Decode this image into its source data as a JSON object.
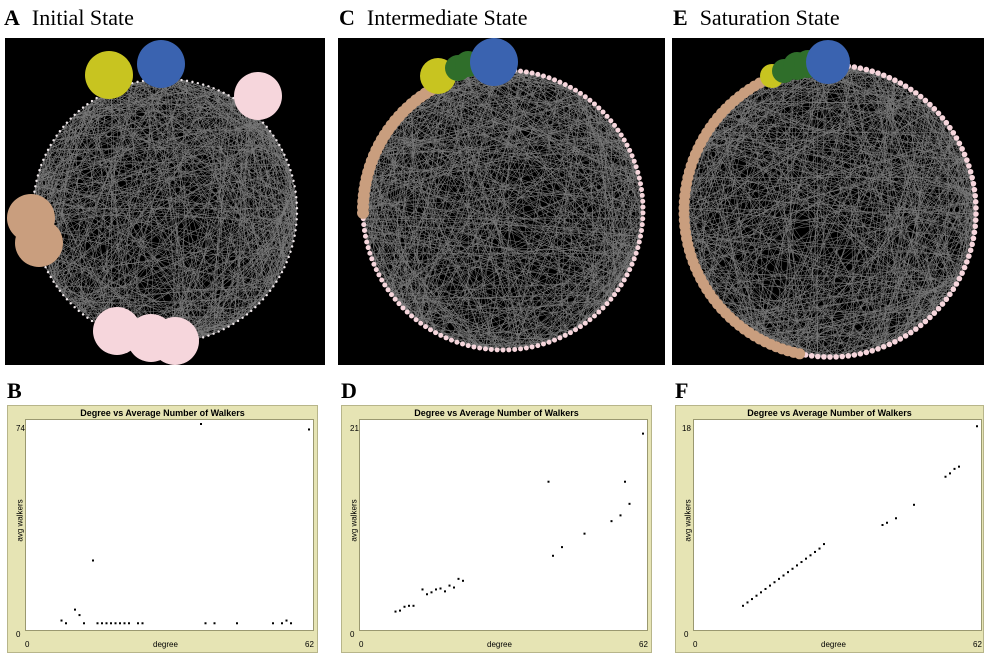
{
  "panels": [
    {
      "letter": "A",
      "title": "Initial State"
    },
    {
      "letter": "C",
      "title": "Intermediate State"
    },
    {
      "letter": "E",
      "title": "Saturation State"
    }
  ],
  "plot_letters": [
    "B",
    "D",
    "F"
  ],
  "colors": {
    "blue": "#3a63b0",
    "yellow": "#c8c420",
    "green": "#2f6e2a",
    "tan": "#c99e7e",
    "pink": "#f6d6dc",
    "edge": "#8f8f8f",
    "node": "#f0e8ea"
  },
  "chart_data": [
    {
      "type": "scatter",
      "title": "Degree vs Average Number of Walkers",
      "xlabel": "degree",
      "ylabel": "avg walkers",
      "xlim": [
        0,
        62
      ],
      "ylim": [
        0,
        74
      ],
      "x_ticks": [
        "0",
        "62"
      ],
      "y_ticks": [
        "0",
        "74"
      ],
      "points": [
        [
          7,
          2
        ],
        [
          8,
          1
        ],
        [
          10,
          6
        ],
        [
          11,
          4
        ],
        [
          12,
          1
        ],
        [
          14,
          24
        ],
        [
          15,
          1
        ],
        [
          16,
          1
        ],
        [
          17,
          1
        ],
        [
          18,
          1
        ],
        [
          19,
          1
        ],
        [
          20,
          1
        ],
        [
          21,
          1
        ],
        [
          22,
          1
        ],
        [
          24,
          1
        ],
        [
          25,
          1
        ],
        [
          38,
          74
        ],
        [
          39,
          1
        ],
        [
          41,
          1
        ],
        [
          46,
          1
        ],
        [
          54,
          1
        ],
        [
          56,
          1
        ],
        [
          57,
          2
        ],
        [
          58,
          1
        ],
        [
          62,
          72
        ]
      ]
    },
    {
      "type": "scatter",
      "title": "Degree vs Average Number of Walkers",
      "xlabel": "degree",
      "ylabel": "avg walkers",
      "xlim": [
        0,
        62
      ],
      "ylim": [
        0,
        21
      ],
      "x_ticks": [
        "0",
        "62"
      ],
      "y_ticks": [
        "0",
        "21"
      ],
      "points": [
        [
          7,
          1.5
        ],
        [
          8,
          1.6
        ],
        [
          9,
          2
        ],
        [
          10,
          2.1
        ],
        [
          11,
          2.1
        ],
        [
          13,
          3.8
        ],
        [
          14,
          3.3
        ],
        [
          15,
          3.5
        ],
        [
          16,
          3.8
        ],
        [
          17,
          3.9
        ],
        [
          18,
          3.6
        ],
        [
          19,
          4.2
        ],
        [
          20,
          4
        ],
        [
          21,
          4.9
        ],
        [
          22,
          4.7
        ],
        [
          41,
          15
        ],
        [
          42,
          7.3
        ],
        [
          44,
          8.2
        ],
        [
          49,
          9.6
        ],
        [
          55,
          10.9
        ],
        [
          57,
          11.5
        ],
        [
          58,
          15
        ],
        [
          59,
          12.7
        ],
        [
          62,
          20
        ]
      ]
    },
    {
      "type": "scatter",
      "title": "Degree vs Average Number of Walkers",
      "xlabel": "degree",
      "ylabel": "avg walkers",
      "xlim": [
        0,
        62
      ],
      "ylim": [
        0,
        18
      ],
      "x_ticks": [
        "0",
        "62"
      ],
      "y_ticks": [
        "0",
        "18"
      ],
      "points": [
        [
          10,
          1.8
        ],
        [
          11,
          2.1
        ],
        [
          12,
          2.4
        ],
        [
          13,
          2.7
        ],
        [
          14,
          3
        ],
        [
          15,
          3.3
        ],
        [
          16,
          3.6
        ],
        [
          17,
          3.9
        ],
        [
          18,
          4.2
        ],
        [
          19,
          4.5
        ],
        [
          20,
          4.8
        ],
        [
          21,
          5.1
        ],
        [
          22,
          5.4
        ],
        [
          23,
          5.7
        ],
        [
          24,
          6
        ],
        [
          25,
          6.3
        ],
        [
          26,
          6.6
        ],
        [
          27,
          6.9
        ],
        [
          28,
          7.3
        ],
        [
          41,
          9
        ],
        [
          42,
          9.2
        ],
        [
          44,
          9.6
        ],
        [
          48,
          10.8
        ],
        [
          55,
          13.3
        ],
        [
          56,
          13.6
        ],
        [
          57,
          14
        ],
        [
          58,
          14.2
        ],
        [
          62,
          17.8
        ]
      ]
    }
  ]
}
